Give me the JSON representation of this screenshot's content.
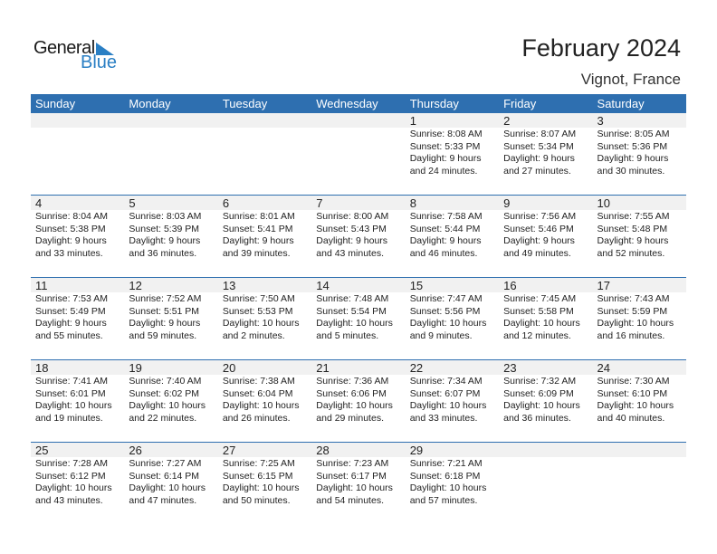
{
  "logo": {
    "text1": "General",
    "text2": "Blue"
  },
  "title": "February 2024",
  "location": "Vignot, France",
  "colors": {
    "header": "#2e6fb0",
    "logo_blue": "#2a7fc4"
  },
  "weekdays": [
    "Sunday",
    "Monday",
    "Tuesday",
    "Wednesday",
    "Thursday",
    "Friday",
    "Saturday"
  ],
  "weeks": [
    [
      null,
      null,
      null,
      null,
      {
        "day": "1",
        "sunrise": "Sunrise: 8:08 AM",
        "sunset": "Sunset: 5:33 PM",
        "daylight1": "Daylight: 9 hours",
        "daylight2": "and 24 minutes."
      },
      {
        "day": "2",
        "sunrise": "Sunrise: 8:07 AM",
        "sunset": "Sunset: 5:34 PM",
        "daylight1": "Daylight: 9 hours",
        "daylight2": "and 27 minutes."
      },
      {
        "day": "3",
        "sunrise": "Sunrise: 8:05 AM",
        "sunset": "Sunset: 5:36 PM",
        "daylight1": "Daylight: 9 hours",
        "daylight2": "and 30 minutes."
      }
    ],
    [
      {
        "day": "4",
        "sunrise": "Sunrise: 8:04 AM",
        "sunset": "Sunset: 5:38 PM",
        "daylight1": "Daylight: 9 hours",
        "daylight2": "and 33 minutes."
      },
      {
        "day": "5",
        "sunrise": "Sunrise: 8:03 AM",
        "sunset": "Sunset: 5:39 PM",
        "daylight1": "Daylight: 9 hours",
        "daylight2": "and 36 minutes."
      },
      {
        "day": "6",
        "sunrise": "Sunrise: 8:01 AM",
        "sunset": "Sunset: 5:41 PM",
        "daylight1": "Daylight: 9 hours",
        "daylight2": "and 39 minutes."
      },
      {
        "day": "7",
        "sunrise": "Sunrise: 8:00 AM",
        "sunset": "Sunset: 5:43 PM",
        "daylight1": "Daylight: 9 hours",
        "daylight2": "and 43 minutes."
      },
      {
        "day": "8",
        "sunrise": "Sunrise: 7:58 AM",
        "sunset": "Sunset: 5:44 PM",
        "daylight1": "Daylight: 9 hours",
        "daylight2": "and 46 minutes."
      },
      {
        "day": "9",
        "sunrise": "Sunrise: 7:56 AM",
        "sunset": "Sunset: 5:46 PM",
        "daylight1": "Daylight: 9 hours",
        "daylight2": "and 49 minutes."
      },
      {
        "day": "10",
        "sunrise": "Sunrise: 7:55 AM",
        "sunset": "Sunset: 5:48 PM",
        "daylight1": "Daylight: 9 hours",
        "daylight2": "and 52 minutes."
      }
    ],
    [
      {
        "day": "11",
        "sunrise": "Sunrise: 7:53 AM",
        "sunset": "Sunset: 5:49 PM",
        "daylight1": "Daylight: 9 hours",
        "daylight2": "and 55 minutes."
      },
      {
        "day": "12",
        "sunrise": "Sunrise: 7:52 AM",
        "sunset": "Sunset: 5:51 PM",
        "daylight1": "Daylight: 9 hours",
        "daylight2": "and 59 minutes."
      },
      {
        "day": "13",
        "sunrise": "Sunrise: 7:50 AM",
        "sunset": "Sunset: 5:53 PM",
        "daylight1": "Daylight: 10 hours",
        "daylight2": "and 2 minutes."
      },
      {
        "day": "14",
        "sunrise": "Sunrise: 7:48 AM",
        "sunset": "Sunset: 5:54 PM",
        "daylight1": "Daylight: 10 hours",
        "daylight2": "and 5 minutes."
      },
      {
        "day": "15",
        "sunrise": "Sunrise: 7:47 AM",
        "sunset": "Sunset: 5:56 PM",
        "daylight1": "Daylight: 10 hours",
        "daylight2": "and 9 minutes."
      },
      {
        "day": "16",
        "sunrise": "Sunrise: 7:45 AM",
        "sunset": "Sunset: 5:58 PM",
        "daylight1": "Daylight: 10 hours",
        "daylight2": "and 12 minutes."
      },
      {
        "day": "17",
        "sunrise": "Sunrise: 7:43 AM",
        "sunset": "Sunset: 5:59 PM",
        "daylight1": "Daylight: 10 hours",
        "daylight2": "and 16 minutes."
      }
    ],
    [
      {
        "day": "18",
        "sunrise": "Sunrise: 7:41 AM",
        "sunset": "Sunset: 6:01 PM",
        "daylight1": "Daylight: 10 hours",
        "daylight2": "and 19 minutes."
      },
      {
        "day": "19",
        "sunrise": "Sunrise: 7:40 AM",
        "sunset": "Sunset: 6:02 PM",
        "daylight1": "Daylight: 10 hours",
        "daylight2": "and 22 minutes."
      },
      {
        "day": "20",
        "sunrise": "Sunrise: 7:38 AM",
        "sunset": "Sunset: 6:04 PM",
        "daylight1": "Daylight: 10 hours",
        "daylight2": "and 26 minutes."
      },
      {
        "day": "21",
        "sunrise": "Sunrise: 7:36 AM",
        "sunset": "Sunset: 6:06 PM",
        "daylight1": "Daylight: 10 hours",
        "daylight2": "and 29 minutes."
      },
      {
        "day": "22",
        "sunrise": "Sunrise: 7:34 AM",
        "sunset": "Sunset: 6:07 PM",
        "daylight1": "Daylight: 10 hours",
        "daylight2": "and 33 minutes."
      },
      {
        "day": "23",
        "sunrise": "Sunrise: 7:32 AM",
        "sunset": "Sunset: 6:09 PM",
        "daylight1": "Daylight: 10 hours",
        "daylight2": "and 36 minutes."
      },
      {
        "day": "24",
        "sunrise": "Sunrise: 7:30 AM",
        "sunset": "Sunset: 6:10 PM",
        "daylight1": "Daylight: 10 hours",
        "daylight2": "and 40 minutes."
      }
    ],
    [
      {
        "day": "25",
        "sunrise": "Sunrise: 7:28 AM",
        "sunset": "Sunset: 6:12 PM",
        "daylight1": "Daylight: 10 hours",
        "daylight2": "and 43 minutes."
      },
      {
        "day": "26",
        "sunrise": "Sunrise: 7:27 AM",
        "sunset": "Sunset: 6:14 PM",
        "daylight1": "Daylight: 10 hours",
        "daylight2": "and 47 minutes."
      },
      {
        "day": "27",
        "sunrise": "Sunrise: 7:25 AM",
        "sunset": "Sunset: 6:15 PM",
        "daylight1": "Daylight: 10 hours",
        "daylight2": "and 50 minutes."
      },
      {
        "day": "28",
        "sunrise": "Sunrise: 7:23 AM",
        "sunset": "Sunset: 6:17 PM",
        "daylight1": "Daylight: 10 hours",
        "daylight2": "and 54 minutes."
      },
      {
        "day": "29",
        "sunrise": "Sunrise: 7:21 AM",
        "sunset": "Sunset: 6:18 PM",
        "daylight1": "Daylight: 10 hours",
        "daylight2": "and 57 minutes."
      },
      null,
      null
    ]
  ]
}
